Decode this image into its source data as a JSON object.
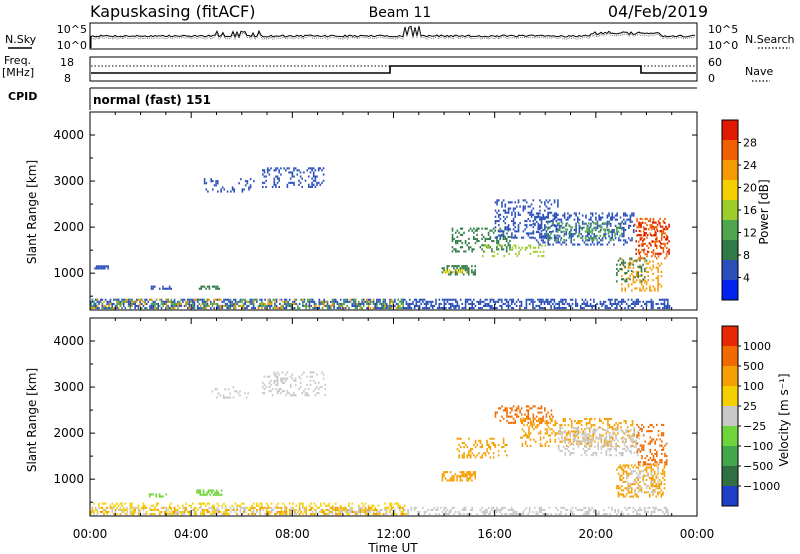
{
  "header": {
    "title": "Kapuskasing (fitACF)",
    "beam": "Beam 11",
    "date": "04/Feb/2019"
  },
  "sky_panel": {
    "left_label": "N.Sky",
    "left_ticks": [
      "10^5",
      "10^0"
    ],
    "right_ticks": [
      "10^5",
      "10^0"
    ],
    "right_label": "N.Search"
  },
  "freq_panel": {
    "left_label_1": "Freq.",
    "left_label_2": "[MHz]",
    "left_ticks": [
      "18",
      "8"
    ],
    "right_ticks": [
      "60",
      "0"
    ],
    "right_label": "Nave"
  },
  "cpid": {
    "label": "CPID",
    "value": "normal (fast) 151"
  },
  "chart_data": [
    {
      "type": "heatmap",
      "name": "power",
      "ylabel": "Slant Range [km]",
      "yticks": [
        "4000",
        "3000",
        "2000",
        "1000"
      ],
      "ylim": [
        200,
        4500
      ],
      "xlim_hours": [
        0,
        24
      ],
      "colorbar_label": "Power [dB]",
      "colorbar_ticks": [
        "28",
        "24",
        "20",
        "16",
        "12",
        "8",
        "4"
      ],
      "colorbar_colors": [
        "#0022ee",
        "#2a4fb8",
        "#2f7a46",
        "#4fa64c",
        "#9ccd2b",
        "#f5d000",
        "#f59a00",
        "#f06000",
        "#e01a00"
      ],
      "regions": [
        {
          "t0": 0.0,
          "t1": 22.9,
          "r0": 220,
          "r1": 420,
          "color": "#2a4fb8",
          "density": 0.5
        },
        {
          "t0": 0.0,
          "t1": 12.5,
          "r0": 220,
          "r1": 420,
          "color": "#4fa64c",
          "density": 0.25
        },
        {
          "t0": 0.0,
          "t1": 12.5,
          "r0": 220,
          "r1": 420,
          "color": "#f59a00",
          "density": 0.12
        },
        {
          "t0": 0.1,
          "t1": 0.8,
          "r0": 1080,
          "r1": 1140,
          "color": "#2a4fb8",
          "density": 0.6
        },
        {
          "t0": 2.4,
          "t1": 3.2,
          "r0": 640,
          "r1": 700,
          "color": "#2a4fb8",
          "density": 0.5
        },
        {
          "t0": 4.3,
          "t1": 5.1,
          "r0": 640,
          "r1": 720,
          "color": "#2f7a46",
          "density": 0.6
        },
        {
          "t0": 4.5,
          "t1": 6.5,
          "r0": 2750,
          "r1": 3050,
          "color": "#2a4fb8",
          "density": 0.25
        },
        {
          "t0": 6.8,
          "t1": 9.3,
          "r0": 2850,
          "r1": 3300,
          "color": "#2a4fb8",
          "density": 0.25
        },
        {
          "t0": 13.9,
          "t1": 15.2,
          "r0": 950,
          "r1": 1150,
          "color": "#2f7a46",
          "density": 0.55
        },
        {
          "t0": 14.0,
          "t1": 15.0,
          "r0": 1000,
          "r1": 1080,
          "color": "#f5d000",
          "density": 0.3
        },
        {
          "t0": 14.3,
          "t1": 16.6,
          "r0": 1450,
          "r1": 1950,
          "color": "#2f7a46",
          "density": 0.3
        },
        {
          "t0": 16.0,
          "t1": 18.5,
          "r0": 1750,
          "r1": 2600,
          "color": "#2a4fb8",
          "density": 0.3
        },
        {
          "t0": 17.5,
          "t1": 21.5,
          "r0": 1600,
          "r1": 2300,
          "color": "#2a4fb8",
          "density": 0.35
        },
        {
          "t0": 18.0,
          "t1": 21.0,
          "r0": 1700,
          "r1": 2100,
          "color": "#4fa64c",
          "density": 0.25
        },
        {
          "t0": 15.5,
          "t1": 18.0,
          "r0": 1350,
          "r1": 1600,
          "color": "#9ccd2b",
          "density": 0.2
        },
        {
          "t0": 21.6,
          "t1": 22.8,
          "r0": 1300,
          "r1": 2200,
          "color": "#f06000",
          "density": 0.35
        },
        {
          "t0": 21.5,
          "t1": 22.9,
          "r0": 1400,
          "r1": 2100,
          "color": "#e01a00",
          "density": 0.25
        },
        {
          "t0": 21.0,
          "t1": 22.6,
          "r0": 600,
          "r1": 1300,
          "color": "#f59a00",
          "density": 0.25
        },
        {
          "t0": 20.8,
          "t1": 22.0,
          "r0": 800,
          "r1": 1300,
          "color": "#2f7a46",
          "density": 0.2
        }
      ]
    },
    {
      "type": "heatmap",
      "name": "velocity",
      "ylabel": "Slant Range [km]",
      "yticks": [
        "4000",
        "3000",
        "2000",
        "1000"
      ],
      "ylim": [
        200,
        4500
      ],
      "xlim_hours": [
        0,
        24
      ],
      "xticks": [
        "00:00",
        "04:00",
        "08:00",
        "12:00",
        "16:00",
        "20:00",
        "00:00"
      ],
      "xlabel": "Time UT",
      "colorbar_label": "Velocity [m s⁻¹]",
      "colorbar_ticks": [
        "1000",
        "500",
        "100",
        "25",
        "−25",
        "−100",
        "−500",
        "−1000"
      ],
      "colorbar_colors": [
        "#1e3ec8",
        "#2f6f42",
        "#42a64c",
        "#6fd43a",
        "#c8c8c8",
        "#f5d000",
        "#f5a000",
        "#f06a00",
        "#e82800"
      ],
      "regions": [
        {
          "t0": 0.0,
          "t1": 22.9,
          "r0": 220,
          "r1": 380,
          "color": "#c8c8c8",
          "density": 0.35
        },
        {
          "t0": 0.0,
          "t1": 12.5,
          "r0": 220,
          "r1": 480,
          "color": "#f5d000",
          "density": 0.3
        },
        {
          "t0": 0.0,
          "t1": 12.5,
          "r0": 220,
          "r1": 400,
          "color": "#f5a000",
          "density": 0.15
        },
        {
          "t0": 4.2,
          "t1": 5.2,
          "r0": 640,
          "r1": 740,
          "color": "#6fd43a",
          "density": 0.6
        },
        {
          "t0": 2.2,
          "t1": 3.0,
          "r0": 600,
          "r1": 680,
          "color": "#6fd43a",
          "density": 0.4
        },
        {
          "t0": 6.8,
          "t1": 9.3,
          "r0": 2800,
          "r1": 3300,
          "color": "#c8c8c8",
          "density": 0.25
        },
        {
          "t0": 4.6,
          "t1": 6.4,
          "r0": 2750,
          "r1": 3000,
          "color": "#c8c8c8",
          "density": 0.2
        },
        {
          "t0": 13.9,
          "t1": 15.2,
          "r0": 950,
          "r1": 1150,
          "color": "#f5a000",
          "density": 0.5
        },
        {
          "t0": 14.5,
          "t1": 16.5,
          "r0": 1450,
          "r1": 1900,
          "color": "#f5a000",
          "density": 0.3
        },
        {
          "t0": 16.0,
          "t1": 18.3,
          "r0": 2200,
          "r1": 2600,
          "color": "#f06a00",
          "density": 0.35
        },
        {
          "t0": 17.0,
          "t1": 21.5,
          "r0": 1700,
          "r1": 2300,
          "color": "#f5a000",
          "density": 0.3
        },
        {
          "t0": 18.5,
          "t1": 21.8,
          "r0": 1500,
          "r1": 2100,
          "color": "#c8c8c8",
          "density": 0.35
        },
        {
          "t0": 21.6,
          "t1": 22.8,
          "r0": 1300,
          "r1": 2200,
          "color": "#f06a00",
          "density": 0.3
        },
        {
          "t0": 20.8,
          "t1": 22.7,
          "r0": 600,
          "r1": 1300,
          "color": "#f5a000",
          "density": 0.35
        },
        {
          "t0": 21.2,
          "t1": 22.5,
          "r0": 700,
          "r1": 1200,
          "color": "#c8c8c8",
          "density": 0.2
        }
      ]
    }
  ]
}
